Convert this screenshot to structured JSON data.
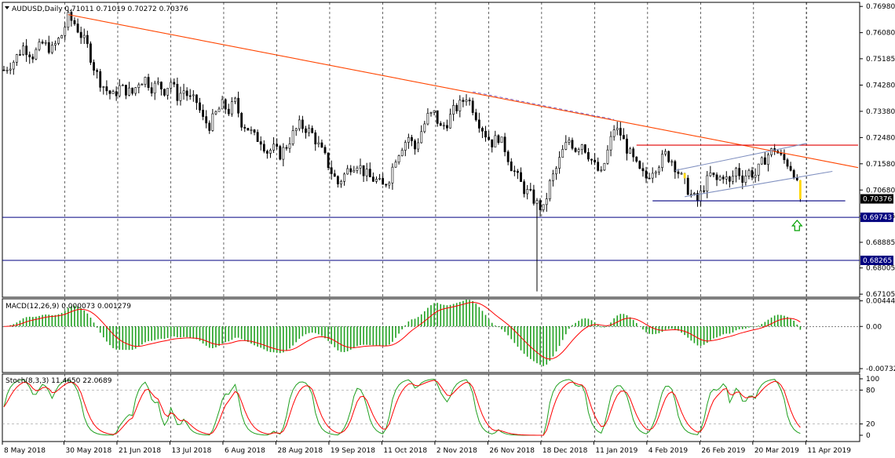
{
  "chart_data": {
    "type": "candlestick",
    "symbol": "AUDUSD,Daily",
    "ohlc": {
      "open": "0.71011",
      "high": "0.71019",
      "low": "0.70272",
      "close": "0.70376"
    },
    "header": "AUDUSD,Daily  0.71011 0.71019 0.70272 0.70376",
    "x_ticks": [
      "8 May 2018",
      "30 May 2018",
      "21 Jun 2018",
      "13 Jul 2018",
      "6 Aug 2018",
      "28 Aug 2018",
      "19 Sep 2018",
      "11 Oct 2018",
      "2 Nov 2018",
      "26 Nov 2018",
      "18 Dec 2018",
      "11 Jan 2019",
      "4 Feb 2019",
      "26 Feb 2019",
      "20 Mar 2019",
      "11 Apr 2019"
    ],
    "price_axis": {
      "ticks": [
        "0.76980",
        "0.76080",
        "0.75185",
        "0.74280",
        "0.73380",
        "0.72480",
        "0.71580",
        "0.70680",
        "0.69785",
        "0.68885",
        "0.68005",
        "0.67105"
      ],
      "range": [
        0.67105,
        0.7698
      ]
    },
    "price_levels": [
      {
        "label": "0.70376",
        "value": 0.70376,
        "kind": "current"
      },
      {
        "label": "0.69743",
        "value": 0.69743,
        "kind": "support"
      },
      {
        "label": "0.68265",
        "value": 0.68265,
        "kind": "support"
      }
    ],
    "close_path": [
      [
        0,
        0.748
      ],
      [
        3,
        0.751
      ],
      [
        6,
        0.756
      ],
      [
        9,
        0.753
      ],
      [
        12,
        0.757
      ],
      [
        15,
        0.755
      ],
      [
        18,
        0.76
      ],
      [
        20,
        0.766
      ],
      [
        22,
        0.764
      ],
      [
        24,
        0.76
      ],
      [
        26,
        0.756
      ],
      [
        28,
        0.749
      ],
      [
        30,
        0.744
      ],
      [
        32,
        0.741
      ],
      [
        34,
        0.739
      ],
      [
        36,
        0.742
      ],
      [
        38,
        0.741
      ],
      [
        40,
        0.74
      ],
      [
        42,
        0.744
      ],
      [
        44,
        0.745
      ],
      [
        46,
        0.742
      ],
      [
        48,
        0.743
      ],
      [
        50,
        0.741
      ],
      [
        52,
        0.744
      ],
      [
        54,
        0.739
      ],
      [
        56,
        0.741
      ],
      [
        58,
        0.738
      ],
      [
        60,
        0.737
      ],
      [
        62,
        0.731
      ],
      [
        64,
        0.729
      ],
      [
        66,
        0.733
      ],
      [
        68,
        0.736
      ],
      [
        70,
        0.734
      ],
      [
        72,
        0.737
      ],
      [
        74,
        0.73
      ],
      [
        76,
        0.728
      ],
      [
        78,
        0.725
      ],
      [
        80,
        0.724
      ],
      [
        82,
        0.72
      ],
      [
        84,
        0.721
      ],
      [
        86,
        0.719
      ],
      [
        88,
        0.722
      ],
      [
        90,
        0.726
      ],
      [
        92,
        0.729
      ],
      [
        94,
        0.728
      ],
      [
        96,
        0.726
      ],
      [
        98,
        0.722
      ],
      [
        100,
        0.718
      ],
      [
        102,
        0.713
      ],
      [
        104,
        0.709
      ],
      [
        106,
        0.712
      ],
      [
        108,
        0.715
      ],
      [
        110,
        0.716
      ],
      [
        112,
        0.713
      ],
      [
        114,
        0.711
      ],
      [
        116,
        0.71
      ],
      [
        118,
        0.708
      ],
      [
        120,
        0.711
      ],
      [
        122,
        0.718
      ],
      [
        124,
        0.722
      ],
      [
        126,
        0.725
      ],
      [
        128,
        0.721
      ],
      [
        130,
        0.727
      ],
      [
        132,
        0.732
      ],
      [
        134,
        0.733
      ],
      [
        136,
        0.728
      ],
      [
        138,
        0.73
      ],
      [
        140,
        0.734
      ],
      [
        142,
        0.736
      ],
      [
        144,
        0.739
      ],
      [
        146,
        0.735
      ],
      [
        148,
        0.73
      ],
      [
        150,
        0.726
      ],
      [
        152,
        0.723
      ],
      [
        154,
        0.725
      ],
      [
        156,
        0.721
      ],
      [
        158,
        0.715
      ],
      [
        160,
        0.711
      ],
      [
        162,
        0.707
      ],
      [
        164,
        0.705
      ],
      [
        166,
        0.702
      ],
      [
        168,
        0.7
      ],
      [
        170,
        0.709
      ],
      [
        172,
        0.714
      ],
      [
        174,
        0.72
      ],
      [
        176,
        0.724
      ],
      [
        178,
        0.721
      ],
      [
        180,
        0.723
      ],
      [
        182,
        0.719
      ],
      [
        184,
        0.715
      ],
      [
        186,
        0.712
      ],
      [
        188,
        0.72
      ],
      [
        190,
        0.728
      ],
      [
        192,
        0.726
      ],
      [
        194,
        0.721
      ],
      [
        196,
        0.717
      ],
      [
        198,
        0.713
      ],
      [
        200,
        0.711
      ],
      [
        202,
        0.714
      ],
      [
        204,
        0.716
      ],
      [
        206,
        0.719
      ],
      [
        208,
        0.717
      ],
      [
        210,
        0.713
      ],
      [
        212,
        0.709
      ],
      [
        214,
        0.705
      ],
      [
        216,
        0.703
      ],
      [
        218,
        0.708
      ],
      [
        220,
        0.712
      ],
      [
        222,
        0.71
      ],
      [
        224,
        0.712
      ],
      [
        226,
        0.709
      ],
      [
        228,
        0.714
      ],
      [
        230,
        0.711
      ],
      [
        232,
        0.713
      ],
      [
        234,
        0.712
      ],
      [
        236,
        0.716
      ],
      [
        238,
        0.719
      ],
      [
        240,
        0.721
      ],
      [
        242,
        0.718
      ],
      [
        244,
        0.716
      ],
      [
        246,
        0.713
      ],
      [
        248,
        0.7038
      ]
    ],
    "trendlines": [
      {
        "name": "long-downtrend",
        "color": "#ff4500",
        "from": [
          20,
          0.767
        ],
        "to": [
          266,
          0.7145
        ]
      },
      {
        "name": "resistance-horizontal",
        "color": "#e00000",
        "from": [
          197,
          0.7222
        ],
        "to": [
          266,
          0.7222
        ]
      },
      {
        "name": "channel-upper",
        "color": "#8090c0",
        "from": [
          209,
          0.7135
        ],
        "to": [
          250,
          0.7228
        ]
      },
      {
        "name": "channel-lower",
        "color": "#8090c0",
        "from": [
          212,
          0.7045
        ],
        "to": [
          258,
          0.7132
        ]
      },
      {
        "name": "support-short",
        "color": "#000080",
        "from": [
          202,
          0.7031
        ],
        "to": [
          262,
          0.7031
        ]
      }
    ],
    "annotations": [
      {
        "kind": "up-arrow",
        "color": "#00a000",
        "at": [
          247,
          0.6945
        ]
      }
    ],
    "macd": {
      "label": "MACD(12,26,9) 0.000073 0.001279",
      "ticks": [
        "0.004443",
        "0.00",
        "-0.007324"
      ],
      "range": [
        -0.008,
        0.0048
      ]
    },
    "stochastic": {
      "label": "Stoch(8,3,3) 11.4650 22.0689",
      "ticks": [
        "100",
        "80",
        "20",
        "0"
      ],
      "levels": [
        80,
        20
      ]
    },
    "grid": true,
    "colors": {
      "bull": "#000000",
      "bear": "#000000",
      "volume_up": "#20a020",
      "signal": "#ff0000",
      "main": "#20a020",
      "highlight": "#ffd700"
    }
  },
  "title": "AUDUSD,Daily"
}
